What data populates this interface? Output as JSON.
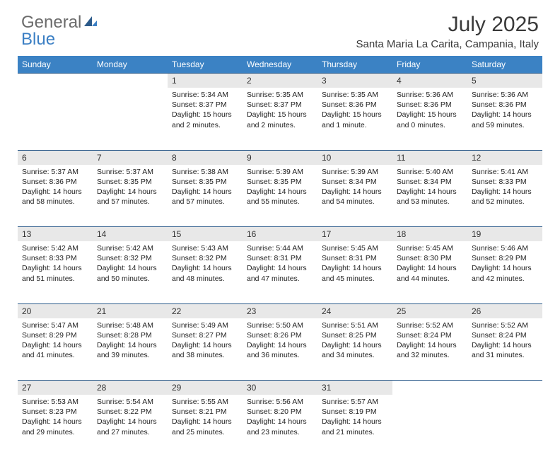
{
  "logo": {
    "part1": "General",
    "part2": "Blue"
  },
  "title": "July 2025",
  "location": "Santa Maria La Carita, Campania, Italy",
  "colors": {
    "header_bg": "#3b82c4",
    "header_text": "#ffffff",
    "daynum_bg": "#e8e8e8",
    "rule": "#2b5a8a",
    "text": "#222222",
    "logo_gray": "#6b6b6b",
    "logo_blue": "#3b7fc4"
  },
  "day_headers": [
    "Sunday",
    "Monday",
    "Tuesday",
    "Wednesday",
    "Thursday",
    "Friday",
    "Saturday"
  ],
  "weeks": [
    [
      null,
      null,
      {
        "n": "1",
        "sr": "5:34 AM",
        "ss": "8:37 PM",
        "dl": "15 hours and 2 minutes."
      },
      {
        "n": "2",
        "sr": "5:35 AM",
        "ss": "8:37 PM",
        "dl": "15 hours and 2 minutes."
      },
      {
        "n": "3",
        "sr": "5:35 AM",
        "ss": "8:36 PM",
        "dl": "15 hours and 1 minute."
      },
      {
        "n": "4",
        "sr": "5:36 AM",
        "ss": "8:36 PM",
        "dl": "15 hours and 0 minutes."
      },
      {
        "n": "5",
        "sr": "5:36 AM",
        "ss": "8:36 PM",
        "dl": "14 hours and 59 minutes."
      }
    ],
    [
      {
        "n": "6",
        "sr": "5:37 AM",
        "ss": "8:36 PM",
        "dl": "14 hours and 58 minutes."
      },
      {
        "n": "7",
        "sr": "5:37 AM",
        "ss": "8:35 PM",
        "dl": "14 hours and 57 minutes."
      },
      {
        "n": "8",
        "sr": "5:38 AM",
        "ss": "8:35 PM",
        "dl": "14 hours and 57 minutes."
      },
      {
        "n": "9",
        "sr": "5:39 AM",
        "ss": "8:35 PM",
        "dl": "14 hours and 55 minutes."
      },
      {
        "n": "10",
        "sr": "5:39 AM",
        "ss": "8:34 PM",
        "dl": "14 hours and 54 minutes."
      },
      {
        "n": "11",
        "sr": "5:40 AM",
        "ss": "8:34 PM",
        "dl": "14 hours and 53 minutes."
      },
      {
        "n": "12",
        "sr": "5:41 AM",
        "ss": "8:33 PM",
        "dl": "14 hours and 52 minutes."
      }
    ],
    [
      {
        "n": "13",
        "sr": "5:42 AM",
        "ss": "8:33 PM",
        "dl": "14 hours and 51 minutes."
      },
      {
        "n": "14",
        "sr": "5:42 AM",
        "ss": "8:32 PM",
        "dl": "14 hours and 50 minutes."
      },
      {
        "n": "15",
        "sr": "5:43 AM",
        "ss": "8:32 PM",
        "dl": "14 hours and 48 minutes."
      },
      {
        "n": "16",
        "sr": "5:44 AM",
        "ss": "8:31 PM",
        "dl": "14 hours and 47 minutes."
      },
      {
        "n": "17",
        "sr": "5:45 AM",
        "ss": "8:31 PM",
        "dl": "14 hours and 45 minutes."
      },
      {
        "n": "18",
        "sr": "5:45 AM",
        "ss": "8:30 PM",
        "dl": "14 hours and 44 minutes."
      },
      {
        "n": "19",
        "sr": "5:46 AM",
        "ss": "8:29 PM",
        "dl": "14 hours and 42 minutes."
      }
    ],
    [
      {
        "n": "20",
        "sr": "5:47 AM",
        "ss": "8:29 PM",
        "dl": "14 hours and 41 minutes."
      },
      {
        "n": "21",
        "sr": "5:48 AM",
        "ss": "8:28 PM",
        "dl": "14 hours and 39 minutes."
      },
      {
        "n": "22",
        "sr": "5:49 AM",
        "ss": "8:27 PM",
        "dl": "14 hours and 38 minutes."
      },
      {
        "n": "23",
        "sr": "5:50 AM",
        "ss": "8:26 PM",
        "dl": "14 hours and 36 minutes."
      },
      {
        "n": "24",
        "sr": "5:51 AM",
        "ss": "8:25 PM",
        "dl": "14 hours and 34 minutes."
      },
      {
        "n": "25",
        "sr": "5:52 AM",
        "ss": "8:24 PM",
        "dl": "14 hours and 32 minutes."
      },
      {
        "n": "26",
        "sr": "5:52 AM",
        "ss": "8:24 PM",
        "dl": "14 hours and 31 minutes."
      }
    ],
    [
      {
        "n": "27",
        "sr": "5:53 AM",
        "ss": "8:23 PM",
        "dl": "14 hours and 29 minutes."
      },
      {
        "n": "28",
        "sr": "5:54 AM",
        "ss": "8:22 PM",
        "dl": "14 hours and 27 minutes."
      },
      {
        "n": "29",
        "sr": "5:55 AM",
        "ss": "8:21 PM",
        "dl": "14 hours and 25 minutes."
      },
      {
        "n": "30",
        "sr": "5:56 AM",
        "ss": "8:20 PM",
        "dl": "14 hours and 23 minutes."
      },
      {
        "n": "31",
        "sr": "5:57 AM",
        "ss": "8:19 PM",
        "dl": "14 hours and 21 minutes."
      },
      null,
      null
    ]
  ],
  "labels": {
    "sunrise": "Sunrise:",
    "sunset": "Sunset:",
    "daylight": "Daylight:"
  }
}
